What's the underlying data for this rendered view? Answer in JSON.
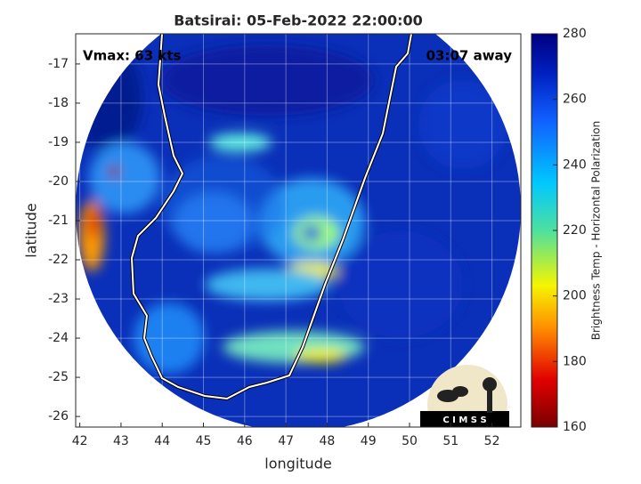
{
  "map": {
    "title": "Batsirai: 05-Feb-2022 22:00:00",
    "annotation_left": "Vmax: 63 kts",
    "annotation_right": "03:07 away",
    "xlabel": "longitude",
    "ylabel": "latitude",
    "xlim": [
      41.9,
      52.7
    ],
    "ylim": [
      -26.27,
      -16.23
    ],
    "xticks": [
      42,
      43,
      44,
      45,
      46,
      47,
      48,
      49,
      50,
      51,
      52
    ],
    "yticks": [
      -17,
      -18,
      -19,
      -20,
      -21,
      -22,
      -23,
      -24,
      -25,
      -26
    ],
    "grid": true,
    "colorbar": {
      "label": "Brightness Temp - Horizontal Polarization",
      "lim": [
        160,
        280
      ],
      "ticks": [
        160,
        180,
        200,
        220,
        240,
        260,
        280
      ]
    },
    "logo_text": "C I M S S"
  }
}
